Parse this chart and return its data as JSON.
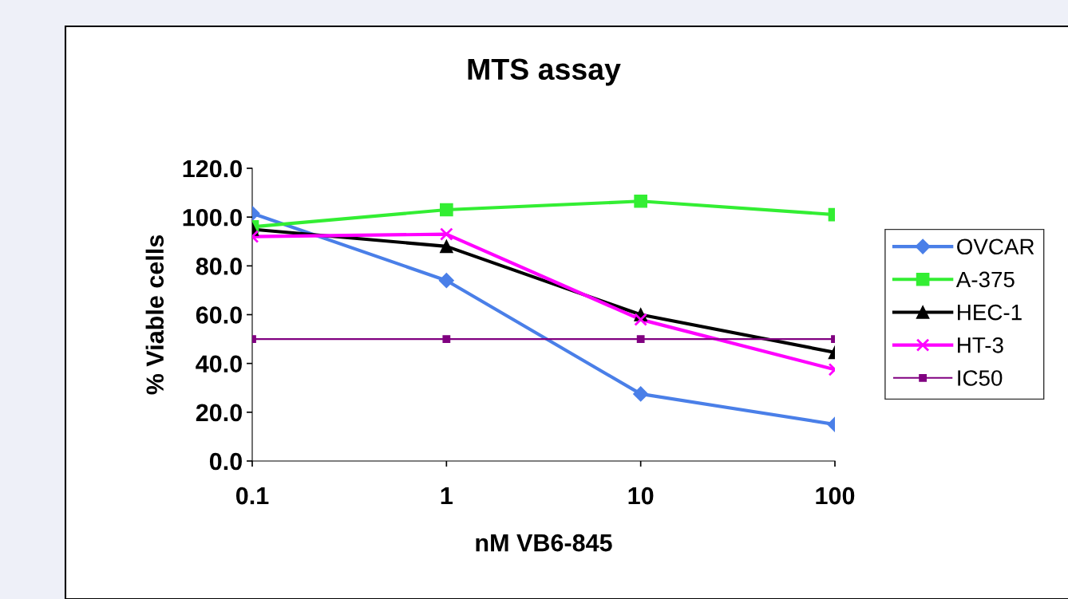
{
  "chart_data": {
    "type": "line",
    "title": "MTS assay",
    "xlabel": "nM VB6-845",
    "ylabel": "% Viable cells",
    "x": [
      0.1,
      1,
      10,
      100
    ],
    "log": "x",
    "xlim": [
      0.1,
      100
    ],
    "xticks": [
      0.1,
      1,
      10,
      100
    ],
    "ylim": [
      0,
      120
    ],
    "yticks": [
      {
        "value": 0,
        "label": "0.0"
      },
      {
        "value": 20,
        "label": "20.0"
      },
      {
        "value": 40,
        "label": "40.0"
      },
      {
        "value": 60,
        "label": "60.0"
      },
      {
        "value": 80,
        "label": "80.0"
      },
      {
        "value": 100,
        "label": "100.0"
      },
      {
        "value": 120,
        "label": "120.0"
      }
    ],
    "grid": false,
    "legend": "right",
    "series": [
      {
        "name": "OVCAR",
        "color": "#4a7fe8",
        "marker": "diamond",
        "values": [
          101.5,
          74,
          27.5,
          15
        ]
      },
      {
        "name": "A-375",
        "color": "#33ee33",
        "marker": "square",
        "values": [
          96,
          103,
          106.5,
          101
        ]
      },
      {
        "name": "HEC-1",
        "color": "#000000",
        "marker": "triangle",
        "values": [
          95,
          88,
          60,
          44.5
        ]
      },
      {
        "name": "HT-3",
        "color": "#ff00ff",
        "marker": "cross",
        "values": [
          92,
          93,
          58,
          37.5
        ]
      },
      {
        "name": "IC50",
        "color": "#800080",
        "marker": "square",
        "values": [
          50,
          50,
          50,
          50
        ]
      }
    ]
  }
}
